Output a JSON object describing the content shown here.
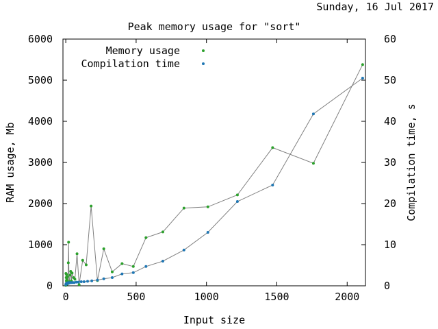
{
  "header": {
    "timestamp": "Sunday, 16 Jul 2017"
  },
  "chart_data": {
    "type": "line",
    "title": "Peak memory usage for \"sort\"",
    "xlabel": "Input size",
    "ylabel": "RAM usage, Mb",
    "y2label": "Compilation time, s",
    "xlim": [
      -20,
      2130
    ],
    "ylim": [
      0,
      6000
    ],
    "y2lim": [
      0,
      60
    ],
    "x_ticks": [
      "0",
      "500",
      "1000",
      "1500",
      "2000"
    ],
    "y_ticks": [
      "0",
      "1000",
      "2000",
      "3000",
      "4000",
      "5000",
      "6000"
    ],
    "y2_ticks": [
      "0",
      "10",
      "20",
      "30",
      "40",
      "50",
      "60"
    ],
    "grid": false,
    "legend_position": "top-left",
    "line_color": "#808080",
    "series": [
      {
        "name": "Memory usage",
        "axis": "left",
        "color": "#2ca02c",
        "points": [
          [
            0,
            10
          ],
          [
            1,
            300
          ],
          [
            2,
            50
          ],
          [
            3,
            200
          ],
          [
            4,
            120
          ],
          [
            5,
            280
          ],
          [
            6,
            60
          ],
          [
            8,
            150
          ],
          [
            10,
            40
          ],
          [
            12,
            220
          ],
          [
            15,
            90
          ],
          [
            18,
            560
          ],
          [
            20,
            1060
          ],
          [
            23,
            100
          ],
          [
            26,
            80
          ],
          [
            30,
            260
          ],
          [
            35,
            350
          ],
          [
            40,
            120
          ],
          [
            45,
            310
          ],
          [
            55,
            200
          ],
          [
            65,
            160
          ],
          [
            80,
            780
          ],
          [
            95,
            30
          ],
          [
            120,
            620
          ],
          [
            145,
            510
          ],
          [
            180,
            1940
          ],
          [
            225,
            130
          ],
          [
            270,
            900
          ],
          [
            330,
            340
          ],
          [
            400,
            540
          ],
          [
            480,
            470
          ],
          [
            570,
            1170
          ],
          [
            690,
            1310
          ],
          [
            840,
            1890
          ],
          [
            1010,
            1920
          ],
          [
            1220,
            2210
          ],
          [
            1470,
            3360
          ],
          [
            1760,
            2980
          ],
          [
            2110,
            5380
          ]
        ]
      },
      {
        "name": "Compilation time",
        "axis": "right",
        "color": "#1f77b4",
        "points": [
          [
            0,
            0.3
          ],
          [
            2,
            0.5
          ],
          [
            4,
            0.4
          ],
          [
            6,
            0.6
          ],
          [
            8,
            0.5
          ],
          [
            10,
            0.7
          ],
          [
            12,
            0.6
          ],
          [
            15,
            0.7
          ],
          [
            18,
            0.6
          ],
          [
            20,
            0.8
          ],
          [
            25,
            0.7
          ],
          [
            30,
            0.8
          ],
          [
            35,
            0.8
          ],
          [
            40,
            0.8
          ],
          [
            50,
            0.8
          ],
          [
            60,
            0.8
          ],
          [
            75,
            0.9
          ],
          [
            90,
            0.9
          ],
          [
            110,
            1.0
          ],
          [
            130,
            1.0
          ],
          [
            155,
            1.1
          ],
          [
            185,
            1.2
          ],
          [
            225,
            1.4
          ],
          [
            270,
            1.7
          ],
          [
            330,
            2.0
          ],
          [
            400,
            2.9
          ],
          [
            480,
            3.2
          ],
          [
            570,
            4.7
          ],
          [
            690,
            6.0
          ],
          [
            840,
            8.7
          ],
          [
            1010,
            13.0
          ],
          [
            1220,
            20.5
          ],
          [
            1470,
            24.5
          ],
          [
            1760,
            41.8
          ],
          [
            2110,
            50.5
          ]
        ]
      }
    ]
  }
}
